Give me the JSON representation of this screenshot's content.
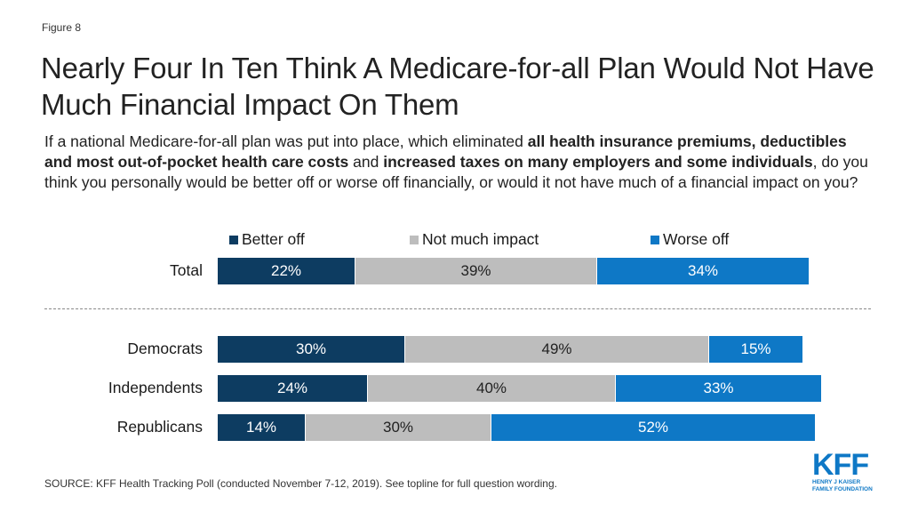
{
  "figure_label": "Figure 8",
  "title": "Nearly Four In Ten Think A Medicare-for-all Plan Would Not Have Much Financial Impact On Them",
  "question": {
    "p1": "If a national Medicare-for-all plan was put into place, which eliminated ",
    "b1": "all health insurance premiums, deductibles and most out-of-pocket health care costs",
    "p2": " and ",
    "b2": "increased taxes on many employers and some individuals",
    "p3": ", do you think you personally would be better off or worse off financially, or would it not have much of a financial impact on you?"
  },
  "colors": {
    "better": "#0d3c61",
    "neutral": "#bdbdbd",
    "worse": "#0e78c6"
  },
  "chart_data": {
    "type": "bar",
    "orientation": "horizontal",
    "stacked": true,
    "categories": [
      "Total",
      "Democrats",
      "Independents",
      "Republicans"
    ],
    "series": [
      {
        "name": "Better off",
        "values": [
          22,
          30,
          24,
          14
        ],
        "labels": [
          "22%",
          "30%",
          "24%",
          "14%"
        ]
      },
      {
        "name": "Not much impact",
        "values": [
          39,
          49,
          40,
          30
        ],
        "labels": [
          "39%",
          "49%",
          "40%",
          "30%"
        ]
      },
      {
        "name": "Worse off",
        "values": [
          34,
          15,
          33,
          52
        ],
        "labels": [
          "34%",
          "15%",
          "33%",
          "52%"
        ]
      }
    ],
    "legend_position": "top",
    "grid": false
  },
  "source": "SOURCE: KFF Health Tracking Poll (conducted November 7-12, 2019). See topline for full question wording.",
  "logo": {
    "mark": "KFF",
    "line1": "HENRY J KAISER",
    "line2": "FAMILY FOUNDATION"
  }
}
